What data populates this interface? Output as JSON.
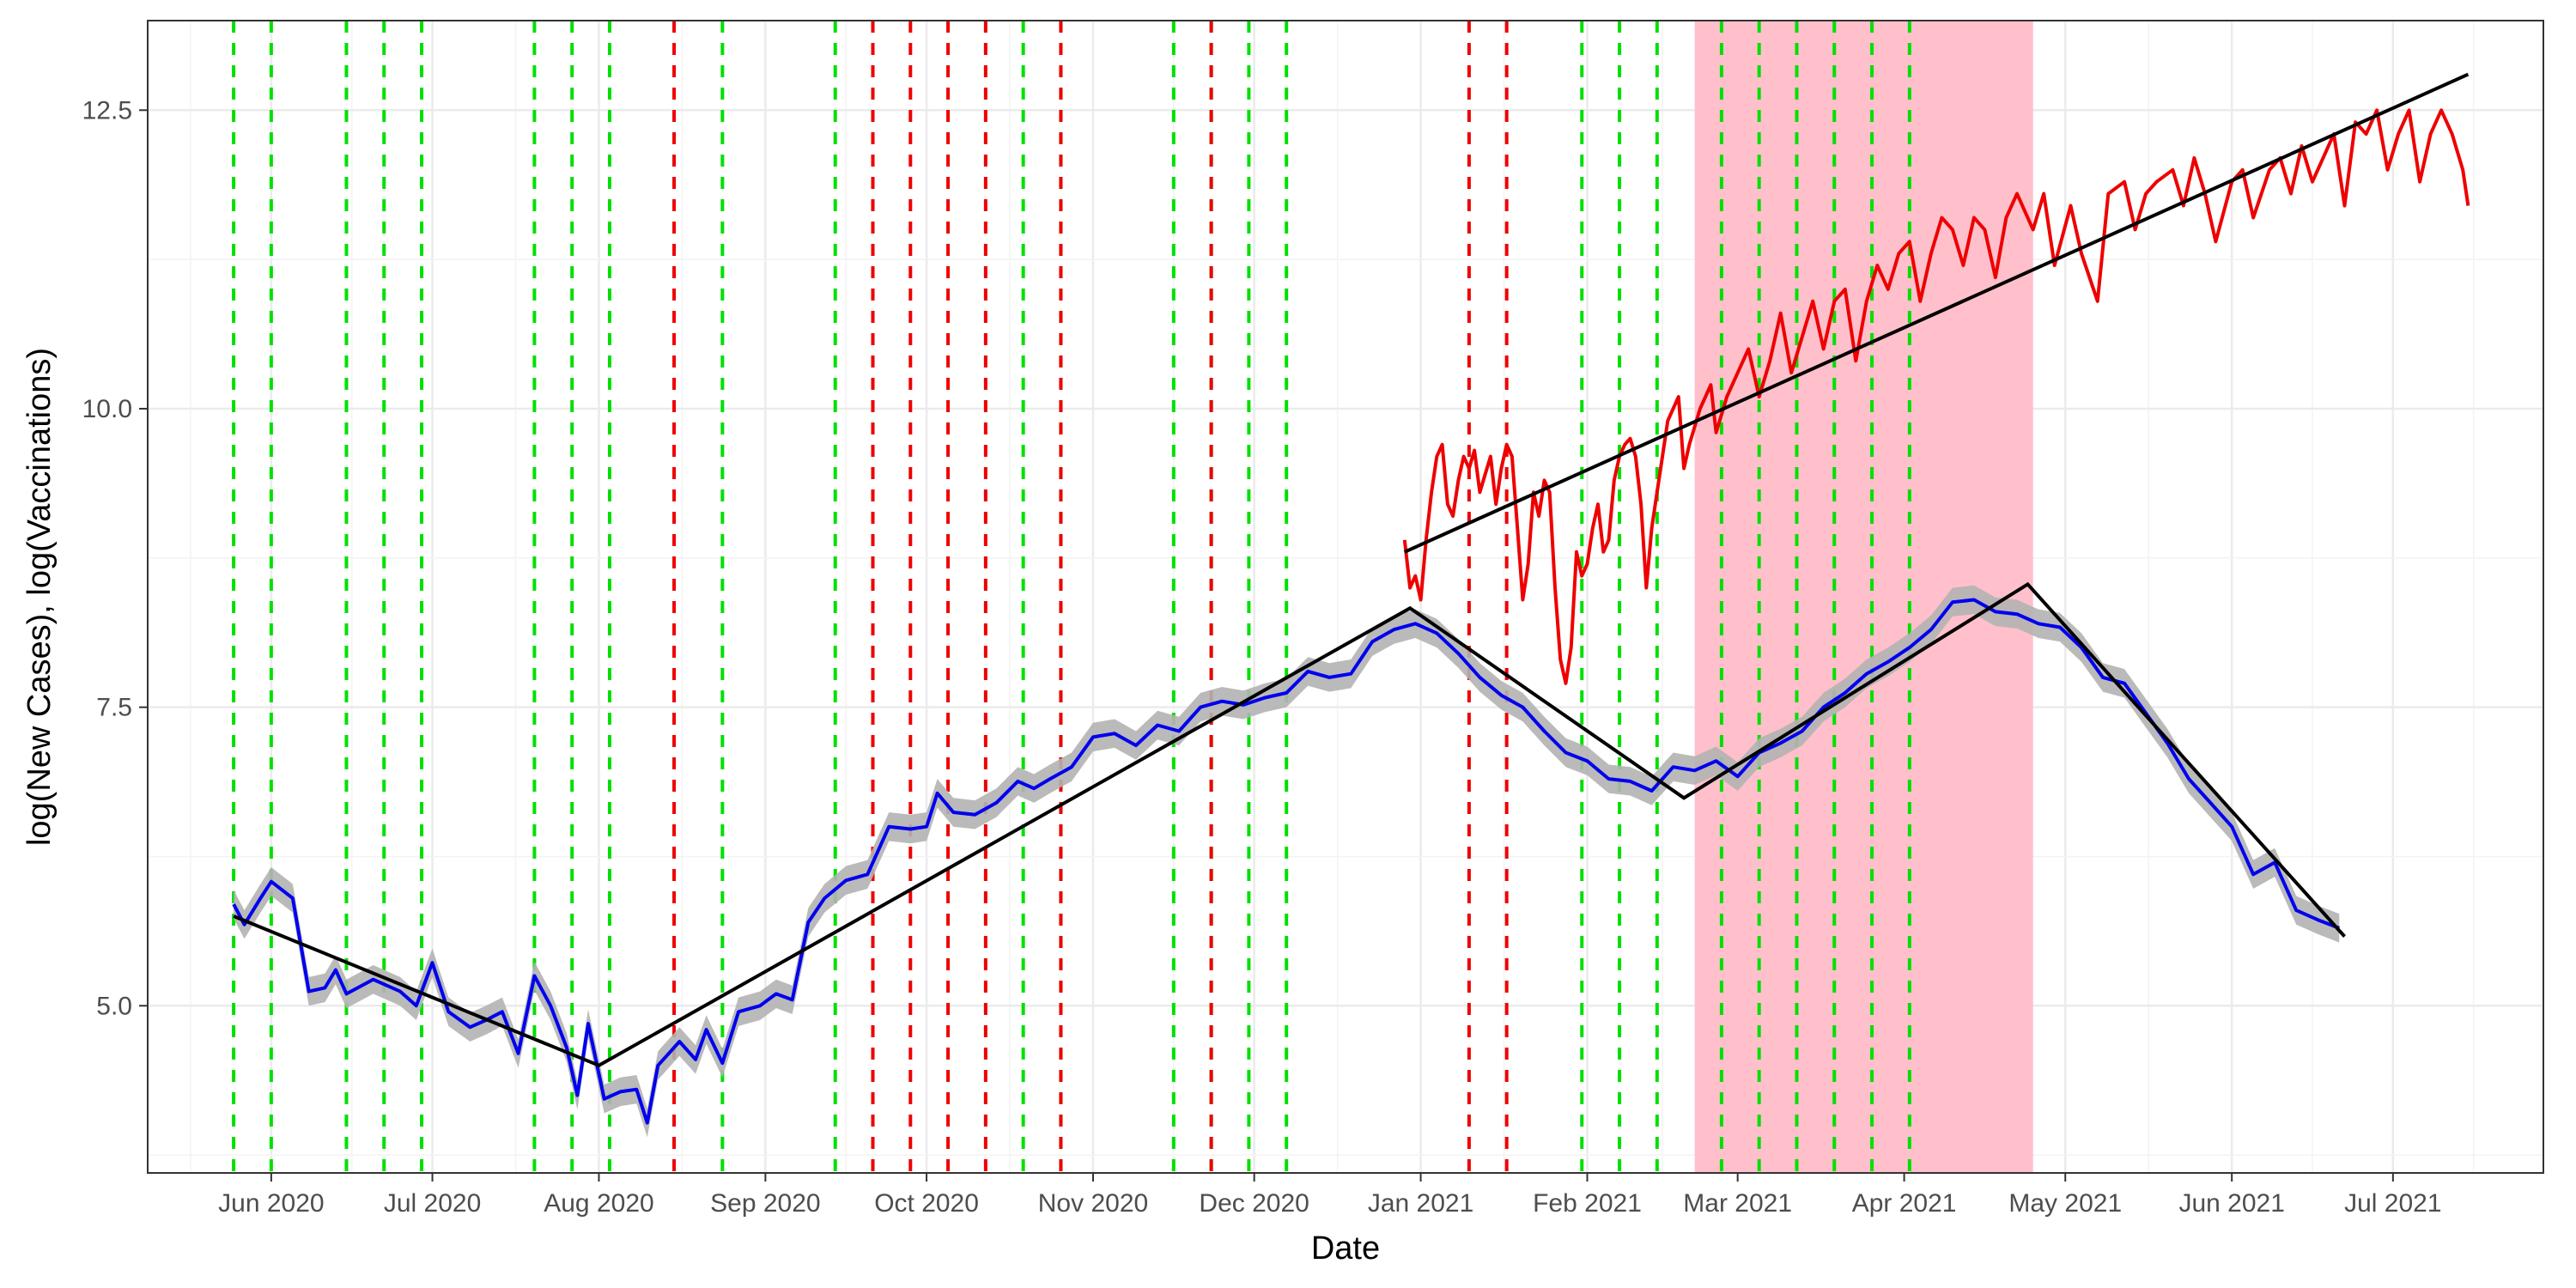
{
  "chart_data": {
    "type": "line",
    "xlabel": "Date",
    "ylabel": "log(New Cases), log(Vaccinations)",
    "x_range": [
      "2020-05-09",
      "2021-07-29"
    ],
    "y_range": [
      3.6,
      13.25
    ],
    "x_ticks": [
      {
        "date": "2020-06-01",
        "label": "Jun 2020"
      },
      {
        "date": "2020-07-01",
        "label": "Jul 2020"
      },
      {
        "date": "2020-08-01",
        "label": "Aug 2020"
      },
      {
        "date": "2020-09-01",
        "label": "Sep 2020"
      },
      {
        "date": "2020-10-01",
        "label": "Oct 2020"
      },
      {
        "date": "2020-11-01",
        "label": "Nov 2020"
      },
      {
        "date": "2020-12-01",
        "label": "Dec 2020"
      },
      {
        "date": "2021-01-01",
        "label": "Jan 2021"
      },
      {
        "date": "2021-02-01",
        "label": "Feb 2021"
      },
      {
        "date": "2021-03-01",
        "label": "Mar 2021"
      },
      {
        "date": "2021-04-01",
        "label": "Apr 2021"
      },
      {
        "date": "2021-05-01",
        "label": "May 2021"
      },
      {
        "date": "2021-06-01",
        "label": "Jun 2021"
      },
      {
        "date": "2021-07-01",
        "label": "Jul 2021"
      }
    ],
    "y_ticks": [
      {
        "value": 5.0,
        "label": "5.0"
      },
      {
        "value": 7.5,
        "label": "7.5"
      },
      {
        "value": 10.0,
        "label": "10.0"
      },
      {
        "value": 12.5,
        "label": "12.5"
      }
    ],
    "grid": true,
    "legend": "none",
    "shaded_region": {
      "start": "2021-02-21",
      "end": "2021-04-25",
      "color": "#ffc0cb"
    },
    "vertical_lines": {
      "green": [
        "2020-05-25",
        "2020-06-01",
        "2020-06-15",
        "2020-06-22",
        "2020-06-29",
        "2020-07-20",
        "2020-07-27",
        "2020-08-03",
        "2020-08-24",
        "2020-09-14",
        "2020-10-19",
        "2020-10-26",
        "2020-11-16",
        "2020-11-23",
        "2020-11-30",
        "2020-12-07",
        "2021-01-31",
        "2021-02-07",
        "2021-02-14",
        "2021-02-26",
        "2021-03-05",
        "2021-03-12",
        "2021-03-19",
        "2021-03-26",
        "2021-04-02"
      ],
      "red": [
        "2020-08-15",
        "2020-09-21",
        "2020-09-28",
        "2020-10-05",
        "2020-10-12",
        "2020-10-26",
        "2020-11-23",
        "2021-01-10",
        "2021-01-17"
      ],
      "colors": {
        "green": "#00e000",
        "red": "#ee0000"
      }
    },
    "series": [
      {
        "color": "#0000ee",
        "band_color": "#b3b3b3",
        "band_halfwidth": 0.12,
        "values": [
          [
            "2020-05-25",
            5.85
          ],
          [
            "2020-05-27",
            5.68
          ],
          [
            "2020-05-30",
            5.9
          ],
          [
            "2020-06-01",
            6.04
          ],
          [
            "2020-06-05",
            5.9
          ],
          [
            "2020-06-08",
            5.12
          ],
          [
            "2020-06-11",
            5.15
          ],
          [
            "2020-06-13",
            5.3
          ],
          [
            "2020-06-15",
            5.1
          ],
          [
            "2020-06-20",
            5.22
          ],
          [
            "2020-06-25",
            5.12
          ],
          [
            "2020-06-28",
            5.0
          ],
          [
            "2020-07-01",
            5.36
          ],
          [
            "2020-07-04",
            4.95
          ],
          [
            "2020-07-08",
            4.82
          ],
          [
            "2020-07-11",
            4.88
          ],
          [
            "2020-07-14",
            4.95
          ],
          [
            "2020-07-17",
            4.6
          ],
          [
            "2020-07-20",
            5.25
          ],
          [
            "2020-07-23",
            5.0
          ],
          [
            "2020-07-26",
            4.65
          ],
          [
            "2020-07-28",
            4.25
          ],
          [
            "2020-07-30",
            4.85
          ],
          [
            "2020-08-02",
            4.22
          ],
          [
            "2020-08-05",
            4.28
          ],
          [
            "2020-08-08",
            4.3
          ],
          [
            "2020-08-10",
            4.02
          ],
          [
            "2020-08-12",
            4.5
          ],
          [
            "2020-08-16",
            4.7
          ],
          [
            "2020-08-19",
            4.55
          ],
          [
            "2020-08-21",
            4.8
          ],
          [
            "2020-08-24",
            4.52
          ],
          [
            "2020-08-27",
            4.95
          ],
          [
            "2020-08-31",
            5.0
          ],
          [
            "2020-09-03",
            5.1
          ],
          [
            "2020-09-06",
            5.05
          ],
          [
            "2020-09-09",
            5.7
          ],
          [
            "2020-09-12",
            5.9
          ],
          [
            "2020-09-16",
            6.05
          ],
          [
            "2020-09-20",
            6.1
          ],
          [
            "2020-09-24",
            6.5
          ],
          [
            "2020-09-28",
            6.48
          ],
          [
            "2020-10-01",
            6.5
          ],
          [
            "2020-10-03",
            6.78
          ],
          [
            "2020-10-06",
            6.62
          ],
          [
            "2020-10-10",
            6.6
          ],
          [
            "2020-10-14",
            6.7
          ],
          [
            "2020-10-18",
            6.88
          ],
          [
            "2020-10-21",
            6.82
          ],
          [
            "2020-10-24",
            6.9
          ],
          [
            "2020-10-28",
            7.0
          ],
          [
            "2020-11-01",
            7.25
          ],
          [
            "2020-11-05",
            7.28
          ],
          [
            "2020-11-09",
            7.18
          ],
          [
            "2020-11-13",
            7.35
          ],
          [
            "2020-11-17",
            7.3
          ],
          [
            "2020-11-21",
            7.5
          ],
          [
            "2020-11-25",
            7.55
          ],
          [
            "2020-11-29",
            7.52
          ],
          [
            "2020-12-03",
            7.58
          ],
          [
            "2020-12-07",
            7.62
          ],
          [
            "2020-12-11",
            7.8
          ],
          [
            "2020-12-15",
            7.75
          ],
          [
            "2020-12-19",
            7.78
          ],
          [
            "2020-12-23",
            8.05
          ],
          [
            "2020-12-27",
            8.15
          ],
          [
            "2020-12-31",
            8.2
          ],
          [
            "2021-01-04",
            8.12
          ],
          [
            "2021-01-08",
            7.95
          ],
          [
            "2021-01-12",
            7.75
          ],
          [
            "2021-01-16",
            7.6
          ],
          [
            "2021-01-20",
            7.5
          ],
          [
            "2021-01-24",
            7.3
          ],
          [
            "2021-01-28",
            7.12
          ],
          [
            "2021-02-01",
            7.05
          ],
          [
            "2021-02-05",
            6.9
          ],
          [
            "2021-02-09",
            6.88
          ],
          [
            "2021-02-13",
            6.8
          ],
          [
            "2021-02-17",
            7.0
          ],
          [
            "2021-02-21",
            6.97
          ],
          [
            "2021-02-25",
            7.05
          ],
          [
            "2021-03-01",
            6.92
          ],
          [
            "2021-03-05",
            7.12
          ],
          [
            "2021-03-09",
            7.2
          ],
          [
            "2021-03-13",
            7.3
          ],
          [
            "2021-03-17",
            7.5
          ],
          [
            "2021-03-21",
            7.62
          ],
          [
            "2021-03-25",
            7.78
          ],
          [
            "2021-03-29",
            7.88
          ],
          [
            "2021-04-02",
            8.0
          ],
          [
            "2021-04-06",
            8.15
          ],
          [
            "2021-04-10",
            8.38
          ],
          [
            "2021-04-14",
            8.4
          ],
          [
            "2021-04-18",
            8.3
          ],
          [
            "2021-04-22",
            8.28
          ],
          [
            "2021-04-26",
            8.2
          ],
          [
            "2021-04-30",
            8.17
          ],
          [
            "2021-05-04",
            8.0
          ],
          [
            "2021-05-08",
            7.75
          ],
          [
            "2021-05-12",
            7.7
          ],
          [
            "2021-05-16",
            7.45
          ],
          [
            "2021-05-20",
            7.2
          ],
          [
            "2021-05-24",
            6.9
          ],
          [
            "2021-05-28",
            6.7
          ],
          [
            "2021-06-01",
            6.5
          ],
          [
            "2021-06-05",
            6.1
          ],
          [
            "2021-06-09",
            6.2
          ],
          [
            "2021-06-13",
            5.8
          ],
          [
            "2021-06-17",
            5.72
          ],
          [
            "2021-06-21",
            5.65
          ]
        ]
      },
      {
        "color": "#ee0000",
        "values": [
          [
            "2020-12-29",
            8.9
          ],
          [
            "2020-12-30",
            8.5
          ],
          [
            "2020-12-31",
            8.6
          ],
          [
            "2021-01-01",
            8.4
          ],
          [
            "2021-01-02",
            8.9
          ],
          [
            "2021-01-03",
            9.3
          ],
          [
            "2021-01-04",
            9.6
          ],
          [
            "2021-01-05",
            9.7
          ],
          [
            "2021-01-06",
            9.2
          ],
          [
            "2021-01-07",
            9.1
          ],
          [
            "2021-01-08",
            9.4
          ],
          [
            "2021-01-09",
            9.6
          ],
          [
            "2021-01-10",
            9.5
          ],
          [
            "2021-01-11",
            9.65
          ],
          [
            "2021-01-12",
            9.3
          ],
          [
            "2021-01-13",
            9.45
          ],
          [
            "2021-01-14",
            9.6
          ],
          [
            "2021-01-15",
            9.2
          ],
          [
            "2021-01-16",
            9.5
          ],
          [
            "2021-01-17",
            9.7
          ],
          [
            "2021-01-18",
            9.6
          ],
          [
            "2021-01-19",
            9.0
          ],
          [
            "2021-01-20",
            8.4
          ],
          [
            "2021-01-21",
            8.7
          ],
          [
            "2021-01-22",
            9.3
          ],
          [
            "2021-01-23",
            9.1
          ],
          [
            "2021-01-24",
            9.4
          ],
          [
            "2021-01-25",
            9.3
          ],
          [
            "2021-01-26",
            8.5
          ],
          [
            "2021-01-27",
            7.9
          ],
          [
            "2021-01-28",
            7.7
          ],
          [
            "2021-01-29",
            8.0
          ],
          [
            "2021-01-30",
            8.8
          ],
          [
            "2021-01-31",
            8.6
          ],
          [
            "2021-02-01",
            8.7
          ],
          [
            "2021-02-02",
            9.0
          ],
          [
            "2021-02-03",
            9.2
          ],
          [
            "2021-02-04",
            8.8
          ],
          [
            "2021-02-05",
            8.9
          ],
          [
            "2021-02-06",
            9.4
          ],
          [
            "2021-02-07",
            9.6
          ],
          [
            "2021-02-08",
            9.7
          ],
          [
            "2021-02-09",
            9.75
          ],
          [
            "2021-02-10",
            9.6
          ],
          [
            "2021-02-11",
            9.2
          ],
          [
            "2021-02-12",
            8.5
          ],
          [
            "2021-02-13",
            9.0
          ],
          [
            "2021-02-14",
            9.3
          ],
          [
            "2021-02-16",
            9.9
          ],
          [
            "2021-02-18",
            10.1
          ],
          [
            "2021-02-19",
            9.5
          ],
          [
            "2021-02-20",
            9.7
          ],
          [
            "2021-02-22",
            10.0
          ],
          [
            "2021-02-24",
            10.2
          ],
          [
            "2021-02-25",
            9.8
          ],
          [
            "2021-02-27",
            10.1
          ],
          [
            "2021-03-01",
            10.3
          ],
          [
            "2021-03-03",
            10.5
          ],
          [
            "2021-03-05",
            10.1
          ],
          [
            "2021-03-07",
            10.4
          ],
          [
            "2021-03-09",
            10.8
          ],
          [
            "2021-03-11",
            10.3
          ],
          [
            "2021-03-13",
            10.6
          ],
          [
            "2021-03-15",
            10.9
          ],
          [
            "2021-03-17",
            10.5
          ],
          [
            "2021-03-19",
            10.9
          ],
          [
            "2021-03-21",
            11.0
          ],
          [
            "2021-03-23",
            10.4
          ],
          [
            "2021-03-25",
            10.9
          ],
          [
            "2021-03-27",
            11.2
          ],
          [
            "2021-03-29",
            11.0
          ],
          [
            "2021-03-31",
            11.3
          ],
          [
            "2021-04-02",
            11.4
          ],
          [
            "2021-04-04",
            10.9
          ],
          [
            "2021-04-06",
            11.3
          ],
          [
            "2021-04-08",
            11.6
          ],
          [
            "2021-04-10",
            11.5
          ],
          [
            "2021-04-12",
            11.2
          ],
          [
            "2021-04-14",
            11.6
          ],
          [
            "2021-04-16",
            11.5
          ],
          [
            "2021-04-18",
            11.1
          ],
          [
            "2021-04-20",
            11.6
          ],
          [
            "2021-04-22",
            11.8
          ],
          [
            "2021-04-25",
            11.5
          ],
          [
            "2021-04-27",
            11.8
          ],
          [
            "2021-04-29",
            11.2
          ],
          [
            "2021-05-02",
            11.7
          ],
          [
            "2021-05-04",
            11.3
          ],
          [
            "2021-05-07",
            10.9
          ],
          [
            "2021-05-09",
            11.8
          ],
          [
            "2021-05-12",
            11.9
          ],
          [
            "2021-05-14",
            11.5
          ],
          [
            "2021-05-16",
            11.8
          ],
          [
            "2021-05-18",
            11.9
          ],
          [
            "2021-05-21",
            12.0
          ],
          [
            "2021-05-23",
            11.7
          ],
          [
            "2021-05-25",
            12.1
          ],
          [
            "2021-05-27",
            11.8
          ],
          [
            "2021-05-29",
            11.4
          ],
          [
            "2021-06-01",
            11.9
          ],
          [
            "2021-06-03",
            12.0
          ],
          [
            "2021-06-05",
            11.6
          ],
          [
            "2021-06-08",
            12.0
          ],
          [
            "2021-06-10",
            12.1
          ],
          [
            "2021-06-12",
            11.8
          ],
          [
            "2021-06-14",
            12.2
          ],
          [
            "2021-06-16",
            11.9
          ],
          [
            "2021-06-18",
            12.1
          ],
          [
            "2021-06-20",
            12.3
          ],
          [
            "2021-06-22",
            11.7
          ],
          [
            "2021-06-24",
            12.4
          ],
          [
            "2021-06-26",
            12.3
          ],
          [
            "2021-06-28",
            12.5
          ],
          [
            "2021-06-30",
            12.0
          ],
          [
            "2021-07-02",
            12.3
          ],
          [
            "2021-07-04",
            12.5
          ],
          [
            "2021-07-06",
            11.9
          ],
          [
            "2021-07-08",
            12.3
          ],
          [
            "2021-07-10",
            12.5
          ],
          [
            "2021-07-12",
            12.3
          ],
          [
            "2021-07-14",
            12.0
          ],
          [
            "2021-07-15",
            11.7
          ]
        ]
      }
    ],
    "trend_lines": {
      "color": "#000000",
      "cases": [
        [
          "2020-05-25",
          5.75
        ],
        [
          "2020-08-01",
          4.5
        ],
        [
          "2020-12-30",
          8.33
        ],
        [
          "2021-02-19",
          6.74
        ],
        [
          "2021-04-24",
          8.53
        ],
        [
          "2021-06-22",
          5.58
        ]
      ],
      "vaccinations": [
        [
          "2020-12-29",
          8.8
        ],
        [
          "2021-07-15",
          12.8
        ]
      ]
    }
  }
}
